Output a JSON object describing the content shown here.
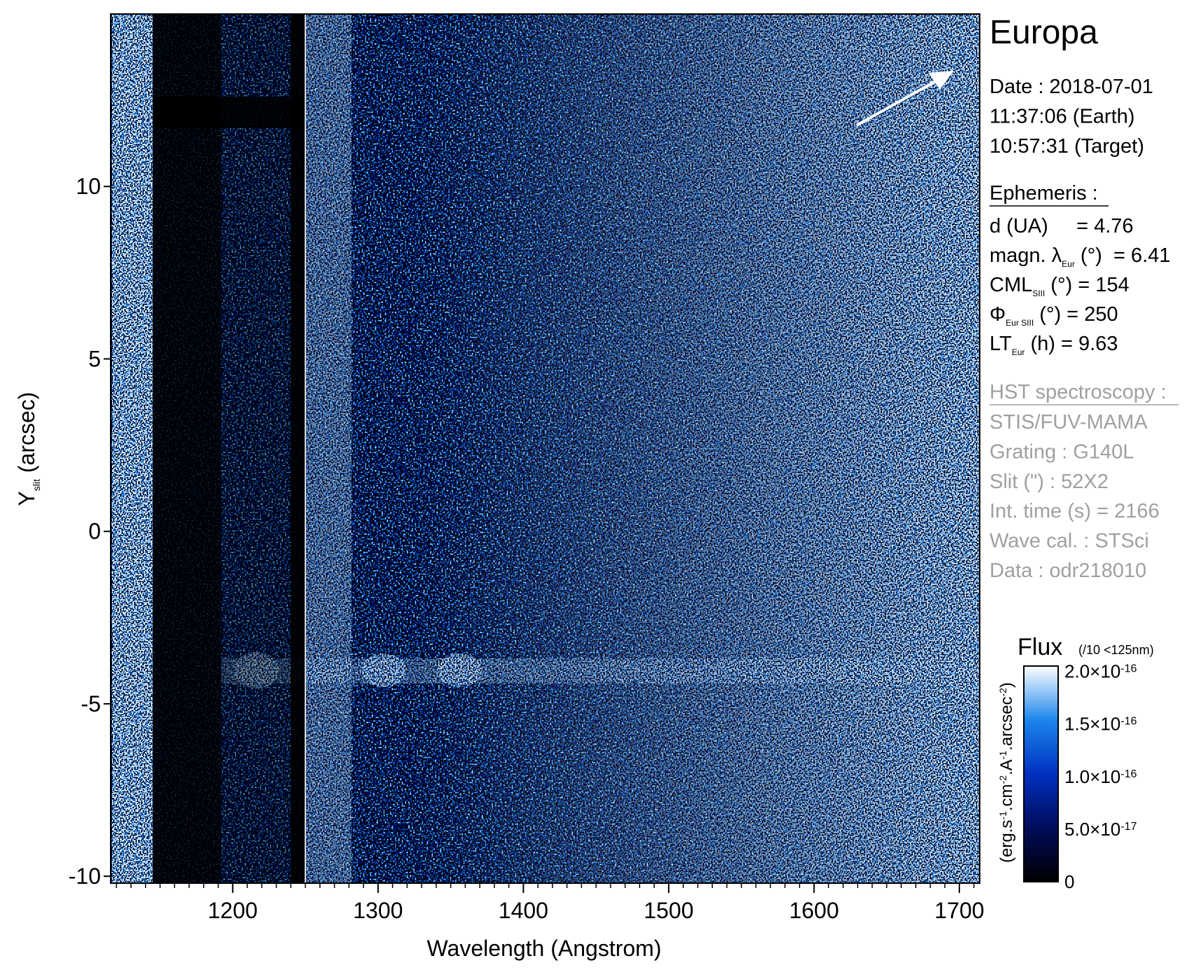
{
  "chart_data": {
    "type": "spectral-image",
    "title": "Europa",
    "xlabel": "Wavelength (Angstrom)",
    "ylabel": [
      "Y",
      "slit",
      " (arcsec)"
    ],
    "xlim": [
      1116,
      1714
    ],
    "xticks": [
      1200,
      1300,
      1400,
      1500,
      1600,
      1700
    ],
    "xminor": 10,
    "ylim": [
      -10.2,
      15
    ],
    "yticks": [
      10,
      5,
      0,
      -5,
      -10
    ],
    "colormap": [
      "#000000",
      "#000c5a",
      "#0030c0",
      "#1c86ec",
      "#ffffff"
    ],
    "colorbar": {
      "title": "Flux",
      "note": "(/10 <125nm)",
      "label": [
        "(erg.s",
        "-1",
        ".cm",
        "-2",
        ".A",
        "-1",
        ".arcsec",
        "-2",
        ")"
      ],
      "clim": [
        0,
        2.05e-16
      ],
      "ticks": [
        {
          "value": 2e-16,
          "label": "2.0×10",
          "exp": "-16"
        },
        {
          "value": 1.5e-16,
          "label": "1.5×10",
          "exp": "-16"
        },
        {
          "value": 1e-16,
          "label": "1.0×10",
          "exp": "-16"
        },
        {
          "value": 5e-17,
          "label": "5.0×10",
          "exp": "-17"
        },
        0
      ]
    },
    "info": {
      "date": [
        "Date : 2018-07-01",
        "11:37:06 (Earth)",
        "10:57:31 (Target)"
      ],
      "ephemeris_title": "Ephemeris :",
      "ephemeris": [
        [
          "d (UA)     = 4.76"
        ],
        [
          "magn. λ",
          "Eur",
          " (°)  = 6.41"
        ],
        [
          "CML",
          "SIII",
          " (°) = 154"
        ],
        [
          "Φ",
          "Eur SIII",
          " (°) = 250"
        ],
        [
          "LT",
          "Eur",
          " (h) = 9.63"
        ]
      ],
      "hst_title": "HST spectroscopy :",
      "hst": [
        "STIS/FUV-MAMA",
        "Grating : G140L",
        "Slit (\") : 52X2",
        "Int. time (s) = 2166",
        "Wave cal. : STSci",
        "Data : odr218010"
      ]
    }
  }
}
